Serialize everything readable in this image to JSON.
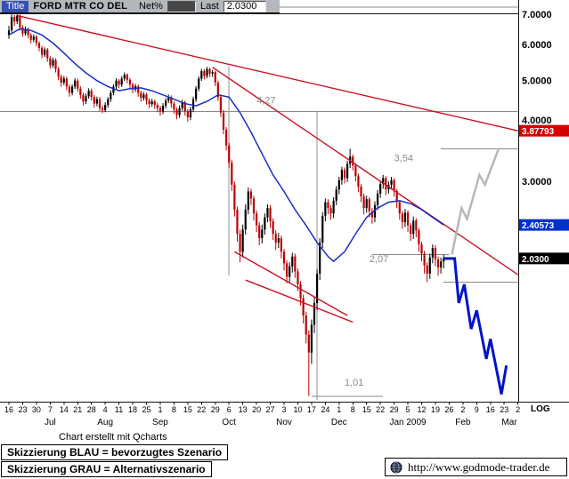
{
  "header": {
    "title_label": "Title",
    "symbol": "FORD MTR CO DEL",
    "net_label": "Net%",
    "last_label": "Last",
    "last_value": "2.0300"
  },
  "chart_data": {
    "type": "candlestick",
    "symbol": "FORD MTR CO DEL",
    "scale_label": "LOG",
    "ylim": [
      1.0,
      7.3
    ],
    "grid": false,
    "legend_position": "none",
    "colors": {
      "up": "#000000",
      "down": "#bb0000",
      "ma": "#1a2fc0",
      "trend": "#cc1122",
      "level": "#8a8a8a",
      "vertical": "#909090",
      "scenario_blue": "#0013cc",
      "scenario_gray": "#b8b8b8"
    },
    "x_ticks": [
      "16",
      "23",
      "30",
      "7",
      "14",
      "21",
      "28",
      "4",
      "11",
      "18",
      "25",
      "1",
      "8",
      "15",
      "22",
      "29",
      "6",
      "13",
      "20",
      "27",
      "3",
      "10",
      "17",
      "24",
      "1",
      "8",
      "15",
      "22",
      "29",
      "5",
      "12",
      "19",
      "26",
      "2",
      "9",
      "16",
      "23",
      "2"
    ],
    "months": [
      {
        "label": "Jul",
        "week": 3
      },
      {
        "label": "Aug",
        "week": 7
      },
      {
        "label": "Sep",
        "week": 11
      },
      {
        "label": "Oct",
        "week": 16
      },
      {
        "label": "Nov",
        "week": 20
      },
      {
        "label": "Dec",
        "week": 24
      },
      {
        "label": "Jan 2009",
        "week": 29
      },
      {
        "label": "Feb",
        "week": 33
      },
      {
        "label": "Mar",
        "week": 37
      }
    ],
    "price_labels": [
      {
        "text": "7.0000",
        "value": 7.0,
        "dy": 0
      },
      {
        "text": "6.0000",
        "value": 6.0,
        "dy": 0
      },
      {
        "text": "5.0000",
        "value": 5.0,
        "dy": 0
      },
      {
        "text": "4.0000",
        "value": 4.0,
        "dy": -5
      },
      {
        "text": "3.0000",
        "value": 3.0,
        "dy": 0
      }
    ],
    "badges": [
      {
        "text": "3.87793",
        "value": 3.87793,
        "bg": "#d40000"
      },
      {
        "text": "2.40573",
        "value": 2.40573,
        "bg": "#0030cc"
      },
      {
        "text": "2.0300",
        "value": 2.03,
        "bg": "#000000"
      }
    ],
    "candles": [
      [
        6.3,
        6.6,
        6.18,
        6.45
      ],
      [
        6.45,
        7.0,
        6.38,
        6.9
      ],
      [
        6.9,
        6.98,
        6.6,
        6.75
      ],
      [
        6.75,
        7.0,
        6.66,
        6.95
      ],
      [
        6.95,
        6.99,
        6.44,
        6.55
      ],
      [
        6.55,
        6.62,
        6.25,
        6.35
      ],
      [
        6.35,
        6.58,
        6.28,
        6.5
      ],
      [
        6.5,
        6.55,
        6.2,
        6.3
      ],
      [
        6.3,
        6.36,
        6.04,
        6.15
      ],
      [
        6.15,
        6.32,
        6.08,
        6.25
      ],
      [
        6.25,
        6.3,
        5.95,
        6.05
      ],
      [
        6.05,
        6.1,
        5.8,
        5.9
      ],
      [
        5.9,
        5.96,
        5.6,
        5.7
      ],
      [
        5.7,
        5.92,
        5.64,
        5.85
      ],
      [
        5.85,
        5.9,
        5.5,
        5.6
      ],
      [
        5.6,
        5.66,
        5.31,
        5.4
      ],
      [
        5.4,
        5.62,
        5.34,
        5.55
      ],
      [
        5.55,
        5.6,
        5.21,
        5.3
      ],
      [
        5.3,
        5.36,
        5.01,
        5.1
      ],
      [
        5.1,
        5.16,
        4.85,
        4.95
      ],
      [
        4.95,
        5.12,
        4.89,
        5.05
      ],
      [
        5.05,
        5.1,
        4.76,
        4.85
      ],
      [
        4.85,
        4.9,
        4.61,
        4.7
      ],
      [
        4.7,
        4.91,
        4.64,
        4.85
      ],
      [
        4.85,
        5.06,
        4.79,
        5.0
      ],
      [
        5.0,
        5.05,
        4.72,
        4.8
      ],
      [
        4.8,
        4.86,
        4.56,
        4.65
      ],
      [
        4.65,
        4.7,
        4.41,
        4.5
      ],
      [
        4.5,
        4.68,
        4.44,
        4.62
      ],
      [
        4.62,
        4.81,
        4.56,
        4.75
      ],
      [
        4.75,
        4.8,
        4.52,
        4.6
      ],
      [
        4.6,
        4.65,
        4.36,
        4.45
      ],
      [
        4.45,
        4.61,
        4.39,
        4.55
      ],
      [
        4.55,
        4.6,
        4.28,
        4.35
      ],
      [
        4.35,
        4.41,
        4.24,
        4.3
      ],
      [
        4.3,
        4.48,
        4.26,
        4.42
      ],
      [
        4.42,
        4.6,
        4.36,
        4.55
      ],
      [
        4.55,
        4.76,
        4.49,
        4.7
      ],
      [
        4.7,
        4.91,
        4.64,
        4.85
      ],
      [
        4.85,
        5.06,
        4.79,
        5.0
      ],
      [
        5.0,
        5.04,
        4.81,
        4.9
      ],
      [
        4.9,
        5.11,
        4.84,
        5.05
      ],
      [
        5.05,
        5.21,
        4.99,
        5.15
      ],
      [
        5.15,
        5.19,
        4.93,
        5.02
      ],
      [
        5.02,
        5.07,
        4.81,
        4.9
      ],
      [
        4.9,
        4.95,
        4.69,
        4.78
      ],
      [
        4.78,
        4.92,
        4.72,
        4.86
      ],
      [
        4.86,
        4.9,
        4.61,
        4.7
      ],
      [
        4.7,
        4.75,
        4.49,
        4.58
      ],
      [
        4.58,
        4.72,
        4.52,
        4.66
      ],
      [
        4.66,
        4.7,
        4.43,
        4.52
      ],
      [
        4.52,
        4.57,
        4.35,
        4.44
      ],
      [
        4.44,
        4.56,
        4.38,
        4.5
      ],
      [
        4.5,
        4.54,
        4.33,
        4.42
      ],
      [
        4.42,
        4.47,
        4.26,
        4.35
      ],
      [
        4.35,
        4.4,
        4.19,
        4.28
      ],
      [
        4.28,
        4.46,
        4.22,
        4.4
      ],
      [
        4.4,
        4.58,
        4.34,
        4.52
      ],
      [
        4.52,
        4.66,
        4.46,
        4.6
      ],
      [
        4.6,
        4.64,
        4.36,
        4.45
      ],
      [
        4.45,
        4.5,
        4.23,
        4.32
      ],
      [
        4.32,
        4.37,
        4.11,
        4.2
      ],
      [
        4.2,
        4.41,
        4.14,
        4.35
      ],
      [
        4.35,
        4.54,
        4.29,
        4.48
      ],
      [
        4.48,
        4.52,
        4.19,
        4.28
      ],
      [
        4.28,
        4.33,
        4.06,
        4.15
      ],
      [
        4.15,
        4.38,
        4.09,
        4.32
      ],
      [
        4.32,
        4.61,
        4.26,
        4.55
      ],
      [
        4.55,
        4.86,
        4.49,
        4.8
      ],
      [
        4.8,
        5.11,
        4.74,
        5.05
      ],
      [
        5.05,
        5.31,
        4.99,
        5.25
      ],
      [
        5.25,
        5.3,
        5.03,
        5.12
      ],
      [
        5.12,
        5.36,
        5.06,
        5.3
      ],
      [
        5.3,
        5.34,
        5.09,
        5.18
      ],
      [
        5.18,
        5.28,
        5.1,
        5.22
      ],
      [
        5.22,
        5.26,
        4.86,
        4.95
      ],
      [
        4.95,
        5.0,
        4.51,
        4.6
      ],
      [
        4.6,
        4.66,
        4.16,
        4.25
      ],
      [
        4.25,
        4.31,
        3.81,
        3.9
      ],
      [
        3.9,
        3.95,
        3.51,
        3.6
      ],
      [
        3.6,
        3.65,
        3.21,
        3.3
      ],
      [
        3.3,
        3.35,
        2.86,
        2.95
      ],
      [
        2.95,
        3.0,
        2.51,
        2.6
      ],
      [
        2.6,
        2.64,
        2.21,
        2.3
      ],
      [
        2.3,
        2.35,
        1.99,
        2.1
      ],
      [
        2.1,
        2.41,
        2.04,
        2.35
      ],
      [
        2.35,
        2.67,
        2.29,
        2.6
      ],
      [
        2.6,
        2.91,
        2.54,
        2.85
      ],
      [
        2.85,
        2.89,
        2.66,
        2.75
      ],
      [
        2.75,
        2.79,
        2.46,
        2.55
      ],
      [
        2.55,
        2.59,
        2.32,
        2.4
      ],
      [
        2.4,
        2.44,
        2.17,
        2.25
      ],
      [
        2.25,
        2.41,
        2.19,
        2.35
      ],
      [
        2.35,
        2.55,
        2.29,
        2.5
      ],
      [
        2.5,
        2.67,
        2.44,
        2.62
      ],
      [
        2.62,
        2.66,
        2.37,
        2.45
      ],
      [
        2.45,
        2.49,
        2.23,
        2.3
      ],
      [
        2.3,
        2.34,
        2.12,
        2.2
      ],
      [
        2.2,
        2.31,
        2.14,
        2.25
      ],
      [
        2.25,
        2.28,
        2.03,
        2.1
      ],
      [
        2.1,
        2.13,
        1.91,
        1.98
      ],
      [
        1.98,
        2.01,
        1.79,
        1.85
      ],
      [
        1.85,
        1.99,
        1.8,
        1.95
      ],
      [
        1.95,
        2.09,
        1.89,
        2.05
      ],
      [
        2.05,
        2.08,
        1.84,
        1.9
      ],
      [
        1.9,
        1.93,
        1.72,
        1.78
      ],
      [
        1.78,
        1.81,
        1.6,
        1.66
      ],
      [
        1.66,
        1.69,
        1.46,
        1.52
      ],
      [
        1.52,
        1.55,
        1.32,
        1.38
      ],
      [
        1.38,
        1.41,
        1.01,
        1.26
      ],
      [
        1.26,
        1.49,
        1.19,
        1.45
      ],
      [
        1.45,
        1.67,
        1.39,
        1.62
      ],
      [
        1.62,
        1.92,
        1.56,
        1.88
      ],
      [
        1.88,
        2.25,
        1.82,
        2.2
      ],
      [
        2.2,
        2.57,
        2.14,
        2.52
      ],
      [
        2.52,
        2.75,
        2.45,
        2.7
      ],
      [
        2.7,
        2.74,
        2.54,
        2.62
      ],
      [
        2.62,
        2.66,
        2.47,
        2.55
      ],
      [
        2.55,
        2.77,
        2.49,
        2.72
      ],
      [
        2.72,
        2.93,
        2.66,
        2.88
      ],
      [
        2.88,
        3.07,
        2.81,
        3.02
      ],
      [
        3.02,
        3.23,
        2.95,
        3.18
      ],
      [
        3.18,
        3.22,
        2.97,
        3.05
      ],
      [
        3.05,
        3.33,
        2.99,
        3.28
      ],
      [
        3.28,
        3.54,
        3.21,
        3.4
      ],
      [
        3.4,
        3.44,
        3.17,
        3.25
      ],
      [
        3.25,
        3.29,
        3.0,
        3.08
      ],
      [
        3.08,
        3.12,
        2.84,
        2.92
      ],
      [
        2.92,
        2.96,
        2.7,
        2.78
      ],
      [
        2.78,
        2.82,
        2.54,
        2.62
      ],
      [
        2.62,
        2.79,
        2.56,
        2.74
      ],
      [
        2.74,
        2.77,
        2.5,
        2.58
      ],
      [
        2.58,
        2.62,
        2.42,
        2.5
      ],
      [
        2.5,
        2.71,
        2.44,
        2.66
      ],
      [
        2.66,
        2.87,
        2.6,
        2.82
      ],
      [
        2.82,
        3.01,
        2.76,
        2.96
      ],
      [
        2.96,
        3.1,
        2.89,
        3.05
      ],
      [
        3.05,
        3.08,
        2.8,
        2.88
      ],
      [
        2.88,
        3.0,
        2.82,
        2.95
      ],
      [
        2.95,
        3.07,
        2.88,
        3.02
      ],
      [
        3.02,
        3.05,
        2.78,
        2.86
      ],
      [
        2.86,
        2.89,
        2.62,
        2.7
      ],
      [
        2.7,
        2.73,
        2.47,
        2.55
      ],
      [
        2.55,
        2.58,
        2.36,
        2.44
      ],
      [
        2.44,
        2.61,
        2.38,
        2.56
      ],
      [
        2.56,
        2.59,
        2.32,
        2.4
      ],
      [
        2.4,
        2.43,
        2.22,
        2.3
      ],
      [
        2.3,
        2.51,
        2.24,
        2.46
      ],
      [
        2.46,
        2.49,
        2.26,
        2.34
      ],
      [
        2.34,
        2.37,
        2.1,
        2.18
      ],
      [
        2.18,
        2.21,
        2.0,
        2.08
      ],
      [
        2.08,
        2.11,
        1.88,
        1.96
      ],
      [
        1.96,
        1.99,
        1.8,
        1.88
      ],
      [
        1.88,
        2.08,
        1.83,
        2.04
      ],
      [
        2.04,
        2.18,
        1.98,
        2.14
      ],
      [
        2.14,
        2.17,
        1.95,
        2.02
      ],
      [
        2.02,
        2.05,
        1.86,
        1.94
      ],
      [
        1.94,
        2.04,
        1.88,
        2.0
      ],
      [
        2.0,
        2.07,
        1.93,
        2.03
      ]
    ],
    "moving_average": {
      "points": [
        [
          0,
          6.3
        ],
        [
          4,
          6.5
        ],
        [
          8,
          6.45
        ],
        [
          12,
          6.3
        ],
        [
          16,
          6.05
        ],
        [
          20,
          5.75
        ],
        [
          24,
          5.45
        ],
        [
          28,
          5.2
        ],
        [
          32,
          5.0
        ],
        [
          36,
          4.85
        ],
        [
          40,
          4.75
        ],
        [
          44,
          4.8
        ],
        [
          48,
          4.82
        ],
        [
          52,
          4.75
        ],
        [
          56,
          4.65
        ],
        [
          60,
          4.55
        ],
        [
          64,
          4.45
        ],
        [
          68,
          4.4
        ],
        [
          72,
          4.5
        ],
        [
          76,
          4.65
        ],
        [
          80,
          4.6
        ],
        [
          84,
          4.25
        ],
        [
          88,
          3.85
        ],
        [
          92,
          3.45
        ],
        [
          96,
          3.1
        ],
        [
          100,
          2.85
        ],
        [
          104,
          2.6
        ],
        [
          108,
          2.4
        ],
        [
          112,
          2.2
        ],
        [
          116,
          2.05
        ],
        [
          118,
          2.0
        ],
        [
          122,
          2.1
        ],
        [
          126,
          2.3
        ],
        [
          130,
          2.5
        ],
        [
          134,
          2.62
        ],
        [
          138,
          2.7
        ],
        [
          142,
          2.72
        ],
        [
          146,
          2.68
        ],
        [
          150,
          2.6
        ],
        [
          154,
          2.5
        ],
        [
          158,
          2.40573
        ]
      ]
    },
    "trendlines": [
      {
        "name": "primary-downtrend",
        "from": [
          3,
          6.95
        ],
        "to": [
          185,
          3.877
        ]
      },
      {
        "name": "secondary-downtrend",
        "from": [
          74,
          5.35
        ],
        "to": [
          185,
          1.87
        ]
      },
      {
        "name": "channel-upper",
        "from": [
          82,
          2.1
        ],
        "to": [
          123,
          1.52
        ]
      },
      {
        "name": "channel-lower",
        "from": [
          86,
          1.82
        ],
        "to": [
          125,
          1.47
        ]
      }
    ],
    "levels": [
      {
        "value": 7.25,
        "from_day": -4,
        "to_day": 185
      },
      {
        "value": 4.27,
        "from_day": -4,
        "to_day": 185,
        "label": "4,27",
        "label_day": 90,
        "label_price": 4.45
      },
      {
        "value": 3.54,
        "from_day": 157,
        "to_day": 185,
        "label": "3,54",
        "label_day": 140,
        "label_price": 3.32
      },
      {
        "value": 2.07,
        "from_day": 132,
        "to_day": 160,
        "label": "2,07",
        "label_day": 131,
        "label_price": 1.99
      },
      {
        "value": 1.8,
        "from_day": 158,
        "to_day": 185
      },
      {
        "value": 1.01,
        "from_day": 110,
        "to_day": 136,
        "label": "1,01",
        "label_day": 122,
        "label_price": 1.065
      }
    ],
    "vertical_marks": [
      {
        "day": 80,
        "from_price": 5.38,
        "to_price": 1.86
      },
      {
        "day": 112,
        "from_price": 4.27,
        "to_price": 0.99
      }
    ],
    "scenarios": [
      {
        "name": "bevorzugtes Szenario (blau)",
        "color_key": "scenario_blue",
        "width": 3,
        "points": [
          [
            158,
            2.03
          ],
          [
            162,
            2.03
          ],
          [
            163.5,
            1.62
          ],
          [
            165.5,
            1.78
          ],
          [
            168,
            1.42
          ],
          [
            170,
            1.56
          ],
          [
            173.5,
            1.22
          ],
          [
            175,
            1.35
          ],
          [
            179,
            1.02
          ],
          [
            180.8,
            1.18
          ]
        ]
      },
      {
        "name": "Alternativszenario (grau)",
        "color_key": "scenario_gray",
        "width": 2.5,
        "points": [
          [
            161,
            2.07
          ],
          [
            164.5,
            2.62
          ],
          [
            166.5,
            2.48
          ],
          [
            171,
            3.1
          ],
          [
            173,
            2.95
          ],
          [
            178,
            3.54
          ]
        ]
      }
    ]
  },
  "footer": {
    "credit": "Chart erstellt mit Qcharts",
    "legend": [
      {
        "text": "Skizzierung BLAU = bevorzugtes Szenario"
      },
      {
        "text": "Skizzierung GRAU = Alternativszenario"
      }
    ],
    "url": "http://www.godmode-trader.de"
  }
}
